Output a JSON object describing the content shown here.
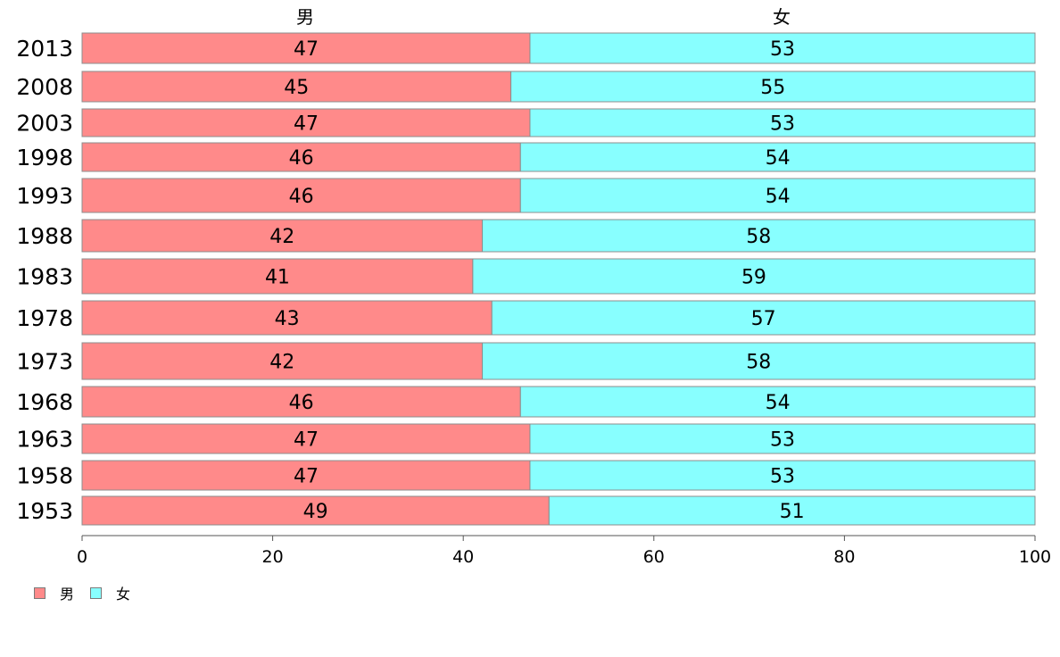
{
  "chart_data": {
    "type": "bar",
    "orientation": "horizontal",
    "stacked": true,
    "categories": [
      "2013",
      "2008",
      "2003",
      "1998",
      "1993",
      "1988",
      "1983",
      "1978",
      "1973",
      "1968",
      "1963",
      "1958",
      "1953"
    ],
    "series": [
      {
        "name": "男",
        "color": "#ff8a8a",
        "values": [
          47,
          45,
          47,
          46,
          46,
          42,
          41,
          43,
          42,
          46,
          47,
          47,
          49
        ],
        "labels": [
          "47",
          "45",
          "47",
          "46",
          "46",
          "42",
          "41",
          "43",
          "42",
          "46",
          "47",
          "47",
          "49"
        ]
      },
      {
        "name": "女",
        "color": "#88ffff",
        "values": [
          53,
          55,
          53,
          54,
          54,
          58,
          59,
          57,
          58,
          54,
          53,
          53,
          51
        ],
        "labels": [
          "53",
          "55",
          "53",
          "54",
          "54",
          "58",
          "59",
          "57",
          "58",
          "54",
          "53",
          "53",
          "51"
        ]
      }
    ],
    "xlim": [
      0,
      100
    ],
    "xticks": [
      "0",
      "20",
      "40",
      "60",
      "80",
      "100"
    ],
    "top_labels": [
      "男",
      "女"
    ],
    "legend": "bottom-left",
    "grid": false
  }
}
